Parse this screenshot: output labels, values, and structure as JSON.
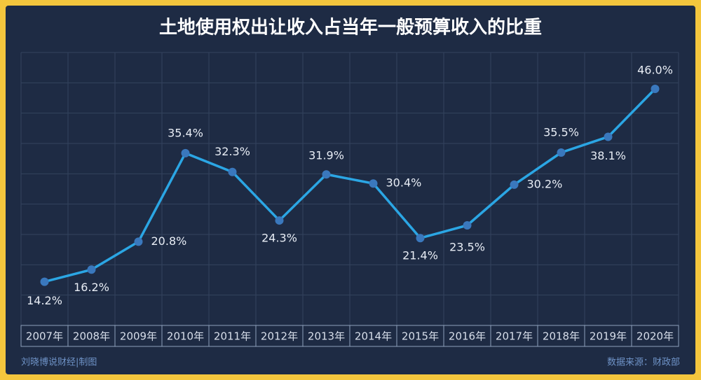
{
  "chart_data": {
    "type": "line",
    "title": "土地使用权出让收入占当年一般预算收入的比重",
    "categories": [
      "2007年",
      "2008年",
      "2009年",
      "2010年",
      "2011年",
      "2012年",
      "2013年",
      "2014年",
      "2015年",
      "2016年",
      "2017年",
      "2018年",
      "2019年",
      "2020年"
    ],
    "series": [
      {
        "color": "#2ba6e4",
        "values": [
          14.2,
          16.2,
          20.8,
          35.4,
          32.3,
          24.3,
          31.9,
          30.4,
          21.4,
          23.5,
          30.2,
          35.5,
          38.1,
          46.0
        ],
        "value_labels": [
          "14.2%",
          "16.2%",
          "20.8%",
          "35.4%",
          "32.3%",
          "24.3%",
          "31.9%",
          "30.4%",
          "21.4%",
          "23.5%",
          "30.2%",
          "35.5%",
          "38.1%",
          "46.0%"
        ]
      }
    ],
    "ylim": [
      7,
      52
    ],
    "grid": true,
    "credit": "刘晓博说财经|制图",
    "source": "数据来源：财政部"
  }
}
